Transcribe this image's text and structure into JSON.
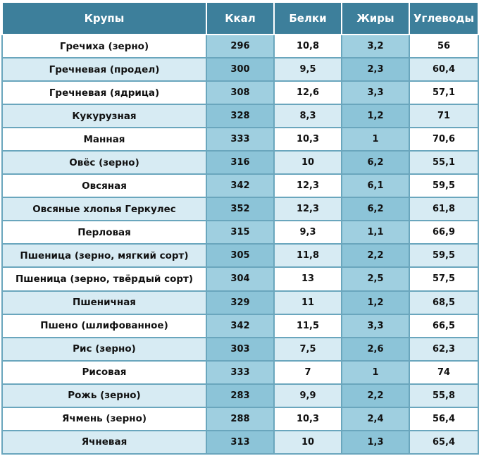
{
  "table": {
    "columns": [
      "Крупы",
      "Ккал",
      "Белки",
      "Жиры",
      "Углеводы"
    ],
    "rows": [
      [
        "Гречиха (зерно)",
        "296",
        "10,8",
        "3,2",
        "56"
      ],
      [
        "Гречневая  (продел)",
        "300",
        "9,5",
        "2,3",
        "60,4"
      ],
      [
        "Гречневая  (ядрица)",
        "308",
        "12,6",
        "3,3",
        "57,1"
      ],
      [
        "Кукурузная",
        "328",
        "8,3",
        "1,2",
        "71"
      ],
      [
        "Манная",
        "333",
        "10,3",
        "1",
        "70,6"
      ],
      [
        "Овёс (зерно)",
        "316",
        "10",
        "6,2",
        "55,1"
      ],
      [
        "Овсяная",
        "342",
        "12,3",
        "6,1",
        "59,5"
      ],
      [
        "Овсяные хлопья Геркулес",
        "352",
        "12,3",
        "6,2",
        "61,8"
      ],
      [
        "Перловая",
        "315",
        "9,3",
        "1,1",
        "66,9"
      ],
      [
        "Пшеница (зерно, мягкий сорт)",
        "305",
        "11,8",
        "2,2",
        "59,5"
      ],
      [
        "Пшеница (зерно, твёрдый сорт)",
        "304",
        "13",
        "2,5",
        "57,5"
      ],
      [
        "Пшеничная",
        "329",
        "11",
        "1,2",
        "68,5"
      ],
      [
        "Пшено (шлифованное)",
        "342",
        "11,5",
        "3,3",
        "66,5"
      ],
      [
        "Рис (зерно)",
        "303",
        "7,5",
        "2,6",
        "62,3"
      ],
      [
        "Рисовая",
        "333",
        "7",
        "1",
        "74"
      ],
      [
        "Рожь (зерно)",
        "283",
        "9,9",
        "2,2",
        "55,8"
      ],
      [
        "Ячмень (зерно)",
        "288",
        "10,3",
        "2,4",
        "56,4"
      ],
      [
        "Ячневая",
        "313",
        "10",
        "1,3",
        "65,4"
      ]
    ]
  },
  "colors": {
    "header_bg": "#3d7f9b",
    "header_text": "#ffffff",
    "light_col": "#ffffff",
    "dark_col": "#9fcfe0"
  }
}
